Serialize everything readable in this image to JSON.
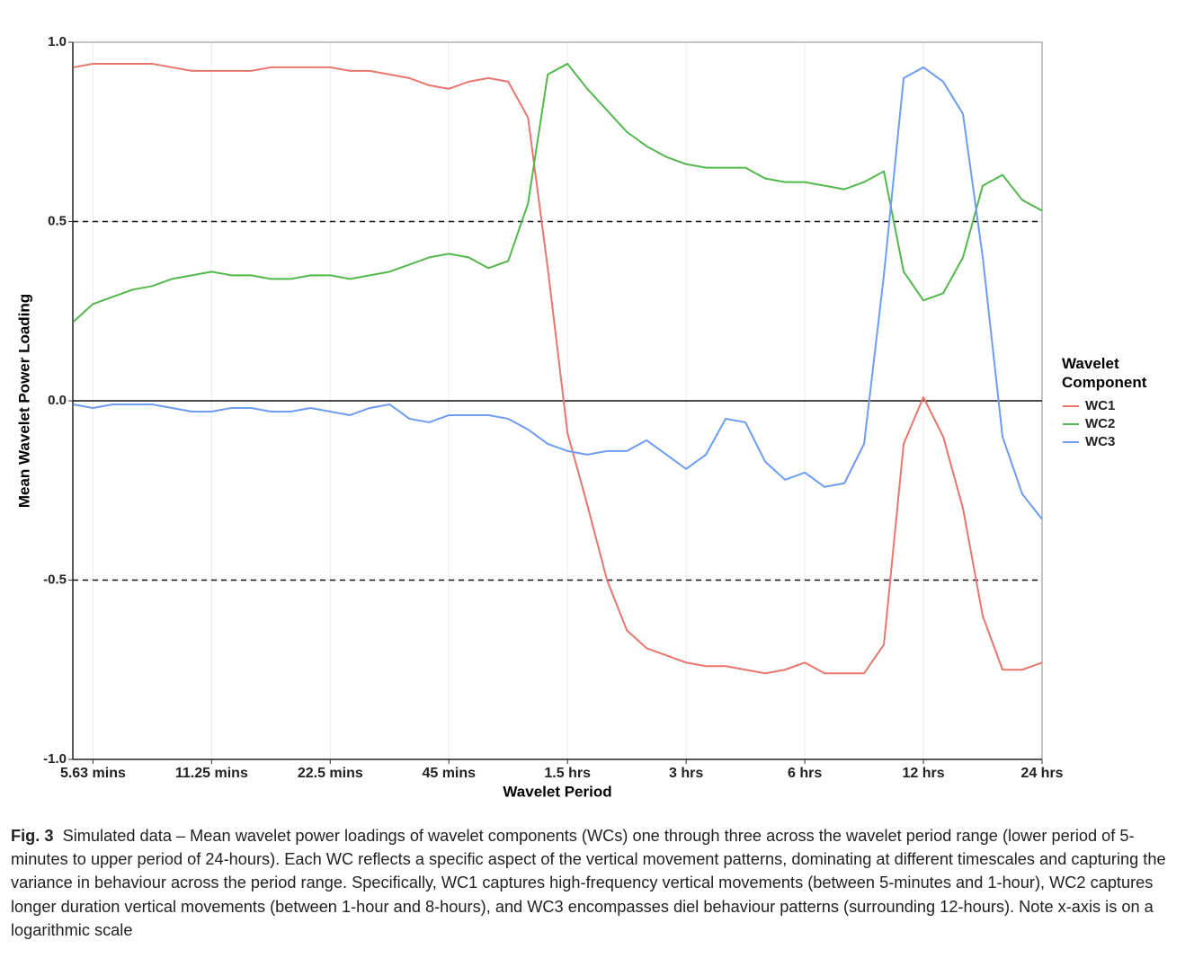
{
  "chart_data": {
    "type": "line",
    "xscale": "log",
    "x_label": "Wavelet Period",
    "y_label": "Mean Wavelet Power Loading",
    "legend_title": "Wavelet Component",
    "legend": "right",
    "x": [
      5.01,
      5.625,
      6.31,
      7.09,
      7.95,
      8.93,
      10.02,
      11.25,
      12.63,
      14.17,
      15.91,
      17.86,
      20.05,
      22.5,
      25.26,
      28.35,
      31.82,
      35.72,
      40.09,
      45,
      50.51,
      56.7,
      63.64,
      71.44,
      80.18,
      90,
      101.03,
      113.39,
      127.28,
      142.87,
      160.37,
      180,
      202.05,
      226.79,
      254.56,
      285.74,
      320.73,
      360,
      404.1,
      453.57,
      509.12,
      571.48,
      641.47,
      720,
      808.2,
      907.14,
      1018.23,
      1142.96,
      1282.93,
      1440
    ],
    "series": [
      {
        "name": "WC1",
        "color": "#e8766d",
        "values": [
          0.93,
          0.94,
          0.94,
          0.94,
          0.94,
          0.93,
          0.92,
          0.92,
          0.92,
          0.92,
          0.93,
          0.93,
          0.93,
          0.93,
          0.92,
          0.92,
          0.91,
          0.9,
          0.88,
          0.87,
          0.89,
          0.9,
          0.89,
          0.79,
          0.37,
          -0.09,
          -0.29,
          -0.5,
          -0.64,
          -0.69,
          -0.71,
          -0.73,
          -0.74,
          -0.74,
          -0.75,
          -0.76,
          -0.75,
          -0.73,
          -0.76,
          -0.76,
          -0.76,
          -0.68,
          -0.12,
          0.01,
          -0.1,
          -0.3,
          -0.6,
          -0.75,
          -0.75,
          -0.73
        ]
      },
      {
        "name": "WC2",
        "color": "#53b74c",
        "values": [
          0.22,
          0.27,
          0.29,
          0.31,
          0.32,
          0.34,
          0.35,
          0.36,
          0.35,
          0.35,
          0.34,
          0.34,
          0.35,
          0.35,
          0.34,
          0.35,
          0.36,
          0.38,
          0.4,
          0.41,
          0.4,
          0.37,
          0.39,
          0.55,
          0.91,
          0.94,
          0.87,
          0.81,
          0.75,
          0.71,
          0.68,
          0.66,
          0.65,
          0.65,
          0.65,
          0.62,
          0.61,
          0.61,
          0.6,
          0.59,
          0.61,
          0.64,
          0.36,
          0.28,
          0.3,
          0.4,
          0.6,
          0.63,
          0.56,
          0.53
        ]
      },
      {
        "name": "WC3",
        "color": "#6d9cf5",
        "values": [
          -0.01,
          -0.02,
          -0.01,
          -0.01,
          -0.01,
          -0.02,
          -0.03,
          -0.03,
          -0.02,
          -0.02,
          -0.03,
          -0.03,
          -0.02,
          -0.03,
          -0.04,
          -0.02,
          -0.01,
          -0.05,
          -0.06,
          -0.04,
          -0.04,
          -0.04,
          -0.05,
          -0.08,
          -0.12,
          -0.14,
          -0.15,
          -0.14,
          -0.14,
          -0.11,
          -0.15,
          -0.19,
          -0.15,
          -0.05,
          -0.06,
          -0.17,
          -0.22,
          -0.2,
          -0.24,
          -0.23,
          -0.12,
          0.35,
          0.9,
          0.93,
          0.89,
          0.8,
          0.4,
          -0.1,
          -0.26,
          -0.33
        ]
      }
    ],
    "xlim": [
      5,
      1440
    ],
    "xticks": [
      {
        "value": 5.625,
        "label": "5.63 mins"
      },
      {
        "value": 11.25,
        "label": "11.25 mins"
      },
      {
        "value": 22.5,
        "label": "22.5 mins"
      },
      {
        "value": 45,
        "label": "45 mins"
      },
      {
        "value": 90,
        "label": "1.5 hrs"
      },
      {
        "value": 180,
        "label": "3 hrs"
      },
      {
        "value": 360,
        "label": "6 hrs"
      },
      {
        "value": 720,
        "label": "12 hrs"
      },
      {
        "value": 1440,
        "label": "24 hrs"
      }
    ],
    "ylim": [
      -1,
      1
    ],
    "yticks": [
      {
        "value": -1,
        "label": "-1.0"
      },
      {
        "value": -0.5,
        "label": "-0.5"
      },
      {
        "value": 0,
        "label": "0.0"
      },
      {
        "value": 0.5,
        "label": "0.5"
      },
      {
        "value": 1,
        "label": "1.0"
      }
    ],
    "grid": true,
    "hlines": [
      {
        "value": 0.5,
        "dashed": true
      },
      {
        "value": 0,
        "dashed": false
      },
      {
        "value": -0.5,
        "dashed": true
      }
    ]
  },
  "caption": {
    "label": "Fig. 3",
    "text": "Simulated data – Mean wavelet power loadings of wavelet components (WCs) one through three across the wavelet period range (lower period of 5-minutes to upper period of 24-hours). Each WC reflects a specific aspect of the vertical movement patterns, dominating at different timescales and capturing the variance in behaviour across the period range. Specifically, WC1 captures high-frequency vertical movements (between 5-minutes and 1-hour), WC2 captures longer duration vertical movements (between 1-hour and 8-hours), and WC3 encompasses diel behaviour patterns (surrounding 12-hours). Note x-axis is on a logarithmic scale"
  }
}
